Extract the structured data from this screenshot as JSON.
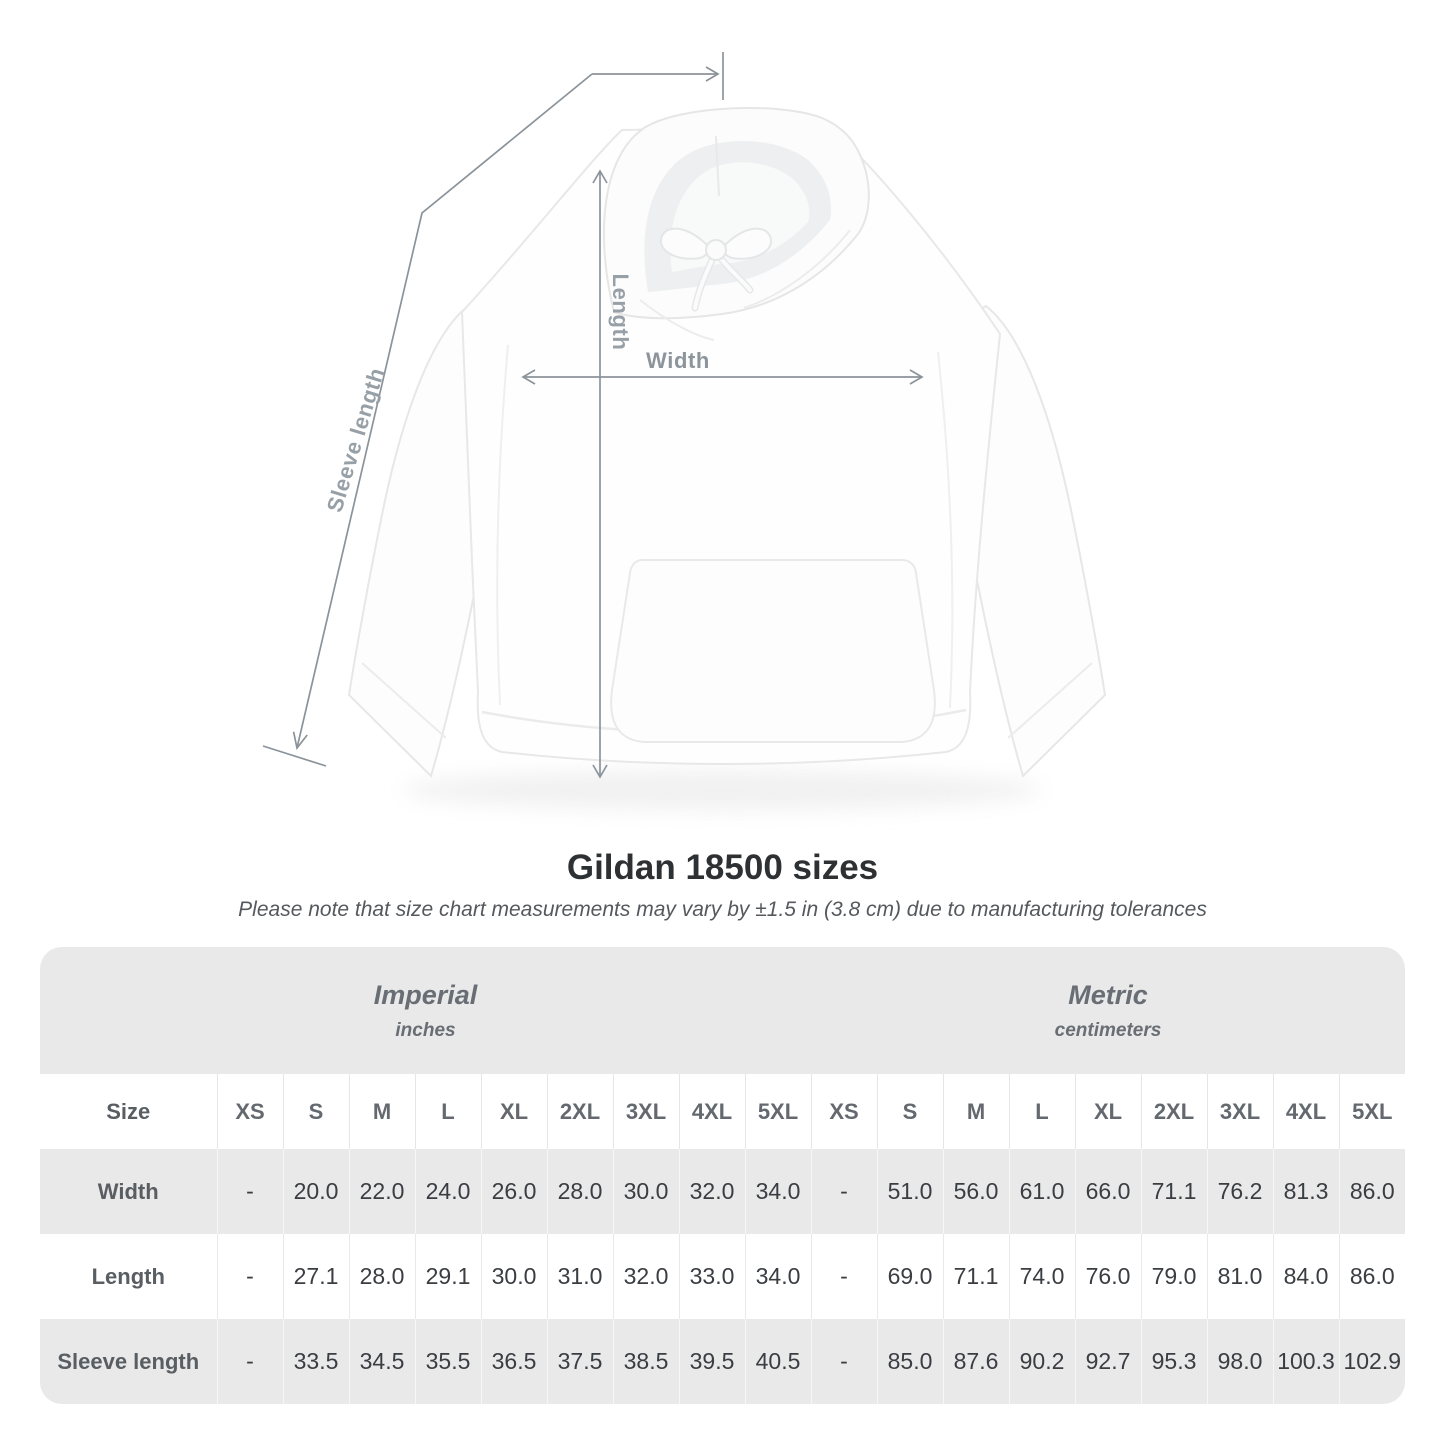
{
  "diagram": {
    "length_label": "Length",
    "width_label": "Width",
    "sleeve_label": "Sleeve length"
  },
  "title": "Gildan 18500 sizes",
  "note": "Please note that size chart measurements may vary by ±1.5 in (3.8 cm) due to manufacturing tolerances",
  "table": {
    "groups": [
      {
        "label": "Imperial",
        "sublabel": "inches"
      },
      {
        "label": "Metric",
        "sublabel": "centimeters"
      }
    ],
    "size_header": "Size",
    "sizes": [
      "XS",
      "S",
      "M",
      "L",
      "XL",
      "2XL",
      "3XL",
      "4XL",
      "5XL"
    ],
    "rows": [
      {
        "label": "Width",
        "imperial": [
          "-",
          "20.0",
          "22.0",
          "24.0",
          "26.0",
          "28.0",
          "30.0",
          "32.0",
          "34.0"
        ],
        "metric": [
          "-",
          "51.0",
          "56.0",
          "61.0",
          "66.0",
          "71.1",
          "76.2",
          "81.3",
          "86.0"
        ]
      },
      {
        "label": "Length",
        "imperial": [
          "-",
          "27.1",
          "28.0",
          "29.1",
          "30.0",
          "31.0",
          "32.0",
          "33.0",
          "34.0"
        ],
        "metric": [
          "-",
          "69.0",
          "71.1",
          "74.0",
          "76.0",
          "79.0",
          "81.0",
          "84.0",
          "86.0"
        ]
      },
      {
        "label": "Sleeve length",
        "imperial": [
          "-",
          "33.5",
          "34.5",
          "35.5",
          "36.5",
          "37.5",
          "38.5",
          "39.5",
          "40.5"
        ],
        "metric": [
          "-",
          "85.0",
          "87.6",
          "90.2",
          "92.7",
          "95.3",
          "98.0",
          "100.3",
          "102.9"
        ]
      }
    ]
  },
  "colors": {
    "table_band": "#e9e9ea",
    "measure_line": "#8b939a",
    "measure_label": "#98a0a7",
    "value_text": "#3a3d41",
    "header_text": "#64696f"
  }
}
